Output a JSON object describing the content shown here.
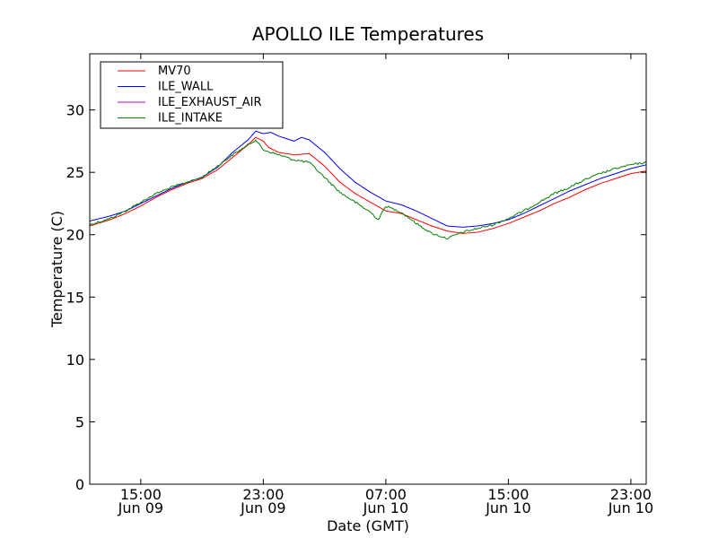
{
  "chart_data": {
    "type": "line",
    "title": "APOLLO ILE Temperatures",
    "xlabel": "Date (GMT)",
    "ylabel": "Temperature (C)",
    "x_unit": "hours",
    "xlim_time": [
      "Jun 09 11:40",
      "Jun 11 00:00"
    ],
    "ylim": [
      0,
      34.5
    ],
    "y_ticks": [
      0,
      5,
      10,
      15,
      20,
      25,
      30
    ],
    "x_ticks": [
      {
        "time": "Jun 09 15:00",
        "line1": "15:00",
        "line2": "Jun 09"
      },
      {
        "time": "Jun 09 23:00",
        "line1": "23:00",
        "line2": "Jun 09"
      },
      {
        "time": "Jun 10 07:00",
        "line1": "07:00",
        "line2": "Jun 10"
      },
      {
        "time": "Jun 10 15:00",
        "line1": "15:00",
        "line2": "Jun 10"
      },
      {
        "time": "Jun 10 23:00",
        "line1": "23:00",
        "line2": "Jun 10"
      }
    ],
    "grid": false,
    "legend_position": "top-left",
    "series": [
      {
        "name": "MV70",
        "color": "#ff0000",
        "points": [
          [
            "Jun 09 11:40",
            20.7
          ],
          [
            "Jun 09 13:00",
            21.2
          ],
          [
            "Jun 09 14:00",
            21.7
          ],
          [
            "Jun 09 15:00",
            22.3
          ],
          [
            "Jun 09 16:00",
            23.0
          ],
          [
            "Jun 09 17:00",
            23.6
          ],
          [
            "Jun 09 18:00",
            24.1
          ],
          [
            "Jun 09 19:00",
            24.5
          ],
          [
            "Jun 09 20:00",
            25.2
          ],
          [
            "Jun 09 21:00",
            26.2
          ],
          [
            "Jun 09 22:00",
            27.2
          ],
          [
            "Jun 09 22:30",
            27.8
          ],
          [
            "Jun 09 23:00",
            27.5
          ],
          [
            "Jun 09 23:20",
            27.0
          ],
          [
            "Jun 10 00:00",
            26.6
          ],
          [
            "Jun 10 01:00",
            26.4
          ],
          [
            "Jun 10 02:00",
            26.5
          ],
          [
            "Jun 10 03:00",
            25.5
          ],
          [
            "Jun 10 04:00",
            24.2
          ],
          [
            "Jun 10 05:00",
            23.3
          ],
          [
            "Jun 10 06:00",
            22.6
          ],
          [
            "Jun 10 07:00",
            21.9
          ],
          [
            "Jun 10 08:00",
            21.7
          ],
          [
            "Jun 10 09:00",
            21.2
          ],
          [
            "Jun 10 10:00",
            20.7
          ],
          [
            "Jun 10 11:00",
            20.3
          ],
          [
            "Jun 10 12:00",
            20.1
          ],
          [
            "Jun 10 13:00",
            20.2
          ],
          [
            "Jun 10 14:00",
            20.5
          ],
          [
            "Jun 10 15:00",
            20.9
          ],
          [
            "Jun 10 16:00",
            21.4
          ],
          [
            "Jun 10 17:00",
            21.9
          ],
          [
            "Jun 10 18:00",
            22.5
          ],
          [
            "Jun 10 19:00",
            23.0
          ],
          [
            "Jun 10 20:00",
            23.6
          ],
          [
            "Jun 10 21:00",
            24.1
          ],
          [
            "Jun 10 22:00",
            24.5
          ],
          [
            "Jun 10 23:00",
            24.9
          ],
          [
            "Jun 11 00:00",
            25.1
          ]
        ]
      },
      {
        "name": "ILE_WALL",
        "color": "#0000ff",
        "points": [
          [
            "Jun 09 11:40",
            21.1
          ],
          [
            "Jun 09 13:00",
            21.5
          ],
          [
            "Jun 09 14:00",
            21.9
          ],
          [
            "Jun 09 15:00",
            22.5
          ],
          [
            "Jun 09 16:00",
            23.1
          ],
          [
            "Jun 09 17:00",
            23.7
          ],
          [
            "Jun 09 18:00",
            24.2
          ],
          [
            "Jun 09 19:00",
            24.6
          ],
          [
            "Jun 09 20:00",
            25.4
          ],
          [
            "Jun 09 21:00",
            26.6
          ],
          [
            "Jun 09 22:00",
            27.6
          ],
          [
            "Jun 09 22:30",
            28.3
          ],
          [
            "Jun 09 23:00",
            28.1
          ],
          [
            "Jun 09 23:30",
            28.2
          ],
          [
            "Jun 10 00:00",
            27.9
          ],
          [
            "Jun 10 01:00",
            27.5
          ],
          [
            "Jun 10 01:30",
            27.8
          ],
          [
            "Jun 10 02:00",
            27.6
          ],
          [
            "Jun 10 03:00",
            26.6
          ],
          [
            "Jun 10 04:00",
            25.3
          ],
          [
            "Jun 10 05:00",
            24.2
          ],
          [
            "Jun 10 06:00",
            23.4
          ],
          [
            "Jun 10 07:00",
            22.7
          ],
          [
            "Jun 10 08:00",
            22.4
          ],
          [
            "Jun 10 09:00",
            21.9
          ],
          [
            "Jun 10 10:00",
            21.3
          ],
          [
            "Jun 10 11:00",
            20.7
          ],
          [
            "Jun 10 12:00",
            20.6
          ],
          [
            "Jun 10 13:00",
            20.7
          ],
          [
            "Jun 10 14:00",
            20.9
          ],
          [
            "Jun 10 15:00",
            21.2
          ],
          [
            "Jun 10 16:00",
            21.7
          ],
          [
            "Jun 10 17:00",
            22.3
          ],
          [
            "Jun 10 18:00",
            22.9
          ],
          [
            "Jun 10 19:00",
            23.5
          ],
          [
            "Jun 10 20:00",
            24.0
          ],
          [
            "Jun 10 21:00",
            24.5
          ],
          [
            "Jun 10 22:00",
            24.9
          ],
          [
            "Jun 10 23:00",
            25.3
          ],
          [
            "Jun 11 00:00",
            25.6
          ]
        ]
      },
      {
        "name": "ILE_EXHAUST_AIR",
        "color": "#bf00bf",
        "points": []
      },
      {
        "name": "ILE_INTAKE",
        "color": "#008000",
        "points": [
          [
            "Jun 09 11:40",
            20.8
          ],
          [
            "Jun 09 13:00",
            21.3
          ],
          [
            "Jun 09 14:00",
            21.9
          ],
          [
            "Jun 09 15:00",
            22.6
          ],
          [
            "Jun 09 16:00",
            23.3
          ],
          [
            "Jun 09 17:00",
            23.8
          ],
          [
            "Jun 09 18:00",
            24.2
          ],
          [
            "Jun 09 19:00",
            24.6
          ],
          [
            "Jun 09 20:00",
            25.5
          ],
          [
            "Jun 09 21:00",
            26.4
          ],
          [
            "Jun 09 22:00",
            27.2
          ],
          [
            "Jun 09 22:30",
            27.6
          ],
          [
            "Jun 09 23:00",
            26.8
          ],
          [
            "Jun 10 00:00",
            26.4
          ],
          [
            "Jun 10 01:00",
            26.0
          ],
          [
            "Jun 10 02:00",
            25.8
          ],
          [
            "Jun 10 03:00",
            24.6
          ],
          [
            "Jun 10 04:00",
            23.4
          ],
          [
            "Jun 10 05:00",
            22.6
          ],
          [
            "Jun 10 06:00",
            21.8
          ],
          [
            "Jun 10 06:30",
            21.2
          ],
          [
            "Jun 10 07:00",
            22.3
          ],
          [
            "Jun 10 08:00",
            21.8
          ],
          [
            "Jun 10 09:00",
            20.9
          ],
          [
            "Jun 10 10:00",
            20.1
          ],
          [
            "Jun 10 11:00",
            19.7
          ],
          [
            "Jun 10 12:00",
            20.2
          ],
          [
            "Jun 10 13:00",
            20.5
          ],
          [
            "Jun 10 14:00",
            20.8
          ],
          [
            "Jun 10 15:00",
            21.3
          ],
          [
            "Jun 10 16:00",
            21.9
          ],
          [
            "Jun 10 17:00",
            22.6
          ],
          [
            "Jun 10 18:00",
            23.3
          ],
          [
            "Jun 10 19:00",
            23.8
          ],
          [
            "Jun 10 20:00",
            24.4
          ],
          [
            "Jun 10 21:00",
            24.9
          ],
          [
            "Jun 10 22:00",
            25.3
          ],
          [
            "Jun 10 23:00",
            25.6
          ],
          [
            "Jun 11 00:00",
            25.8
          ]
        ]
      }
    ]
  }
}
